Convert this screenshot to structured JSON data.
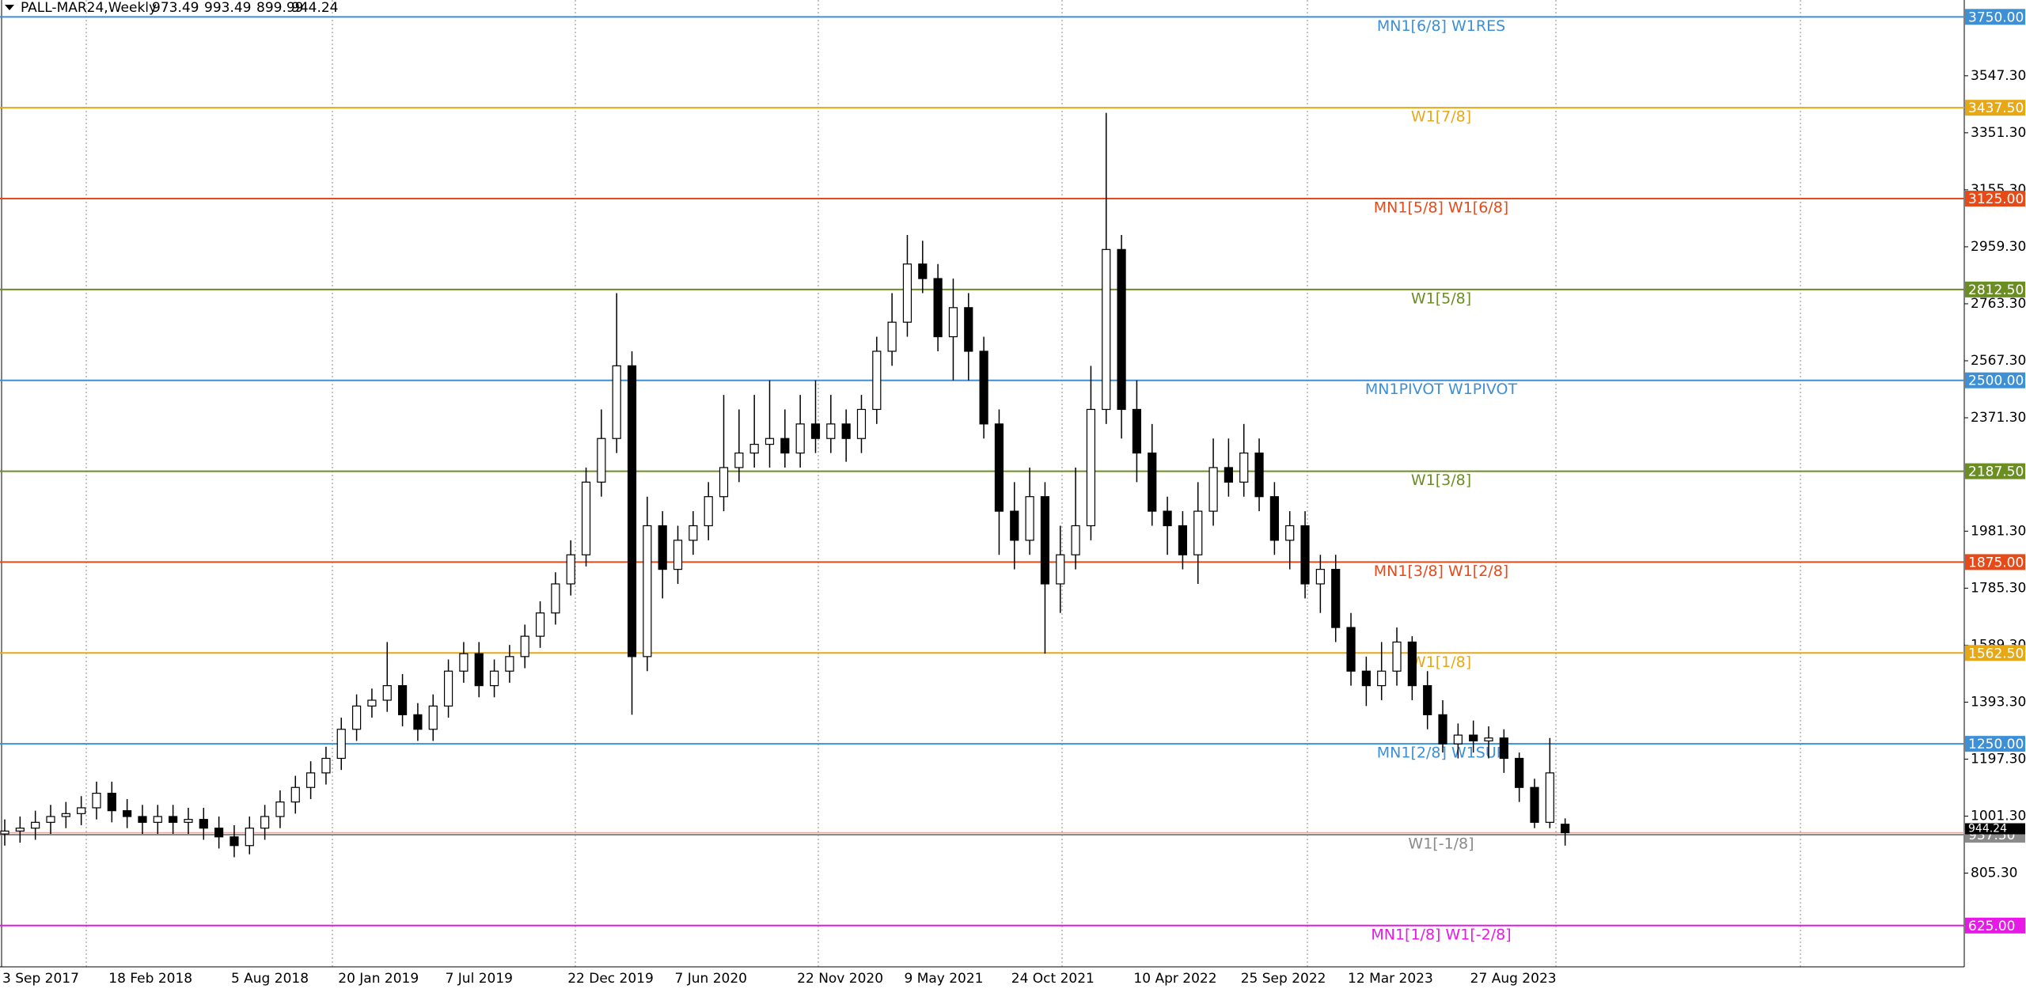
{
  "chart_data": {
    "type": "candlestick",
    "title": "PALL-MAR24,Weekly",
    "categories": [
      "3 Sep 2017",
      null,
      null,
      null,
      null,
      null,
      null,
      "18 Feb 2018",
      null,
      null,
      null,
      null,
      null,
      null,
      null,
      "5 Aug 2018",
      null,
      null,
      null,
      null,
      null,
      null,
      "20 Jan 2019",
      null,
      null,
      null,
      null,
      null,
      null,
      "7 Jul 2019",
      null,
      null,
      null,
      null,
      null,
      null,
      null,
      "22 Dec 2019",
      null,
      null,
      null,
      null,
      null,
      null,
      "7 Jun 2020",
      null,
      null,
      null,
      null,
      null,
      null,
      null,
      "22 Nov 2020",
      null,
      null,
      null,
      null,
      null,
      null,
      "9 May 2021",
      null,
      null,
      null,
      null,
      null,
      null,
      "24 Oct 2021",
      null,
      null,
      null,
      null,
      null,
      null,
      null,
      "10 Apr 2022",
      null,
      null,
      null,
      null,
      null,
      null,
      "25 Sep 2022",
      null,
      null,
      null,
      null,
      null,
      null,
      "12 Mar 2023",
      null,
      null,
      null,
      null,
      null,
      null,
      null,
      "27 Aug 2023",
      null,
      null,
      null,
      null,
      null,
      null
    ],
    "open": [
      940,
      950,
      960,
      980,
      1000,
      1010,
      1030,
      1080,
      1020,
      1000,
      980,
      1000,
      980,
      990,
      960,
      930,
      900,
      960,
      1000,
      1050,
      1100,
      1150,
      1200,
      1300,
      1380,
      1400,
      1450,
      1350,
      1300,
      1380,
      1500,
      1560,
      1450,
      1500,
      1550,
      1620,
      1700,
      1800,
      1900,
      2150,
      2300,
      2550,
      1550,
      2000,
      1850,
      1950,
      2000,
      2100,
      2200,
      2250,
      2280,
      2300,
      2250,
      2350,
      2300,
      2350,
      2300,
      2400,
      2600,
      2700,
      2900,
      2850,
      2650,
      2750,
      2600,
      2350,
      2050,
      1950,
      2100,
      1800,
      1900,
      2000,
      2400,
      2950,
      2400,
      2250,
      2050,
      2000,
      1900,
      2050,
      2200,
      2150,
      2250,
      2100,
      1950,
      2000,
      1800,
      1850,
      1650,
      1500,
      1450,
      1500,
      1600,
      1450,
      1350,
      1250,
      1280,
      1260,
      1270,
      1200,
      1100,
      980,
      973.49
    ],
    "high": [
      990,
      1000,
      1020,
      1040,
      1050,
      1070,
      1120,
      1120,
      1060,
      1040,
      1040,
      1040,
      1030,
      1030,
      1000,
      970,
      1000,
      1040,
      1090,
      1140,
      1190,
      1240,
      1340,
      1420,
      1440,
      1600,
      1490,
      1390,
      1420,
      1540,
      1600,
      1600,
      1540,
      1590,
      1660,
      1740,
      1840,
      1950,
      2200,
      2400,
      2800,
      2600,
      2100,
      2050,
      2000,
      2050,
      2150,
      2450,
      2400,
      2450,
      2500,
      2400,
      2450,
      2500,
      2450,
      2400,
      2450,
      2650,
      2800,
      3000,
      2980,
      2900,
      2850,
      2800,
      2650,
      2400,
      2150,
      2200,
      2150,
      2000,
      2200,
      2550,
      3420,
      3000,
      2500,
      2350,
      2100,
      2050,
      2150,
      2300,
      2300,
      2350,
      2300,
      2150,
      2050,
      2050,
      1900,
      1900,
      1700,
      1550,
      1600,
      1650,
      1620,
      1500,
      1400,
      1320,
      1330,
      1310,
      1300,
      1220,
      1130,
      1270,
      993.49
    ],
    "low": [
      900,
      910,
      920,
      940,
      960,
      970,
      990,
      980,
      960,
      940,
      940,
      940,
      940,
      920,
      890,
      860,
      870,
      920,
      960,
      1010,
      1060,
      1110,
      1160,
      1260,
      1340,
      1360,
      1310,
      1260,
      1260,
      1340,
      1460,
      1410,
      1410,
      1460,
      1510,
      1580,
      1660,
      1760,
      1860,
      2100,
      2250,
      1350,
      1500,
      1750,
      1800,
      1900,
      1950,
      2050,
      2150,
      2200,
      2200,
      2200,
      2200,
      2250,
      2250,
      2220,
      2250,
      2350,
      2550,
      2650,
      2800,
      2600,
      2500,
      2500,
      2300,
      1900,
      1850,
      1900,
      1560,
      1700,
      1850,
      1950,
      2350,
      2300,
      2150,
      2000,
      1900,
      1850,
      1800,
      2000,
      2100,
      2100,
      2050,
      1900,
      1850,
      1750,
      1700,
      1600,
      1450,
      1380,
      1400,
      1450,
      1400,
      1300,
      1220,
      1200,
      1220,
      1200,
      1150,
      1050,
      960,
      960,
      899.99
    ],
    "close": [
      950,
      960,
      980,
      1000,
      1010,
      1030,
      1080,
      1020,
      1000,
      980,
      1000,
      980,
      990,
      960,
      930,
      900,
      960,
      1000,
      1050,
      1100,
      1150,
      1200,
      1300,
      1380,
      1400,
      1450,
      1350,
      1300,
      1380,
      1500,
      1560,
      1450,
      1500,
      1550,
      1620,
      1700,
      1800,
      1900,
      2150,
      2300,
      2550,
      1550,
      2000,
      1850,
      1950,
      2000,
      2100,
      2200,
      2250,
      2280,
      2300,
      2250,
      2350,
      2300,
      2350,
      2300,
      2400,
      2600,
      2700,
      2900,
      2850,
      2650,
      2750,
      2600,
      2350,
      2050,
      1950,
      2100,
      1800,
      1900,
      2000,
      2400,
      2950,
      2400,
      2250,
      2050,
      2000,
      1900,
      2050,
      2200,
      2150,
      2250,
      2100,
      1950,
      2000,
      1800,
      1850,
      1650,
      1500,
      1450,
      1500,
      1600,
      1450,
      1350,
      1250,
      1280,
      1260,
      1270,
      1200,
      1100,
      980,
      1150,
      944.24
    ],
    "up_color": "#ffffff",
    "down_color": "#000000",
    "ylim": [
      483,
      3808
    ],
    "yticks": [
      {
        "value": 805.3,
        "label": "805.30"
      },
      {
        "value": 1001.3,
        "label": "1001.30"
      },
      {
        "value": 1197.3,
        "label": "1197.30"
      },
      {
        "value": 1393.3,
        "label": "1393.30"
      },
      {
        "value": 1589.3,
        "label": "1589.30"
      },
      {
        "value": 1785.3,
        "label": "1785.30"
      },
      {
        "value": 1981.3,
        "label": "1981.30"
      },
      {
        "value": 2371.3,
        "label": "2371.30"
      },
      {
        "value": 2567.3,
        "label": "2567.30"
      },
      {
        "value": 2763.3,
        "label": "2763.30"
      },
      {
        "value": 2959.3,
        "label": "2959.30"
      },
      {
        "value": 3155.3,
        "label": "3155.30"
      },
      {
        "value": 3351.3,
        "label": "3351.30"
      },
      {
        "value": 3547.3,
        "label": "3547.30"
      }
    ],
    "levels": [
      {
        "label": "MN1[6/8] W1RES",
        "value": 3750,
        "value_label": "3750.00",
        "color": "#3d8fd6"
      },
      {
        "label": "W1[7/8]",
        "value": 3437.5,
        "value_label": "3437.50",
        "color": "#e6a817"
      },
      {
        "label": "MN1[5/8] W1[6/8]",
        "value": 3125,
        "value_label": "3125.00",
        "color": "#e64a19"
      },
      {
        "label": "W1[5/8]",
        "value": 2812.5,
        "value_label": "2812.50",
        "color": "#6b8e23"
      },
      {
        "label": "MN1PIVOT W1PIVOT",
        "value": 2500,
        "value_label": "2500.00",
        "color": "#3d8fd6"
      },
      {
        "label": "W1[3/8]",
        "value": 2187.5,
        "value_label": "2187.50",
        "color": "#6b8e23"
      },
      {
        "label": "MN1[3/8] W1[2/8]",
        "value": 1875,
        "value_label": "1875.00",
        "color": "#e64a19"
      },
      {
        "label": "W1[1/8]",
        "value": 1562.5,
        "value_label": "1562.50",
        "color": "#e6a817"
      },
      {
        "label": "MN1[2/8] W1SUP",
        "value": 1250,
        "value_label": "1250.00",
        "color": "#3d8fd6"
      },
      {
        "label": "W1[-1/8]",
        "value": 937.5,
        "value_label": "937.50",
        "color": "#8a8a8a"
      },
      {
        "label": "MN1[1/8] W1[-2/8]",
        "value": 625,
        "value_label": "625.00",
        "color": "#e619e6"
      }
    ],
    "last_price": 944.24,
    "last_price_color": "#e8a8a0"
  }
}
